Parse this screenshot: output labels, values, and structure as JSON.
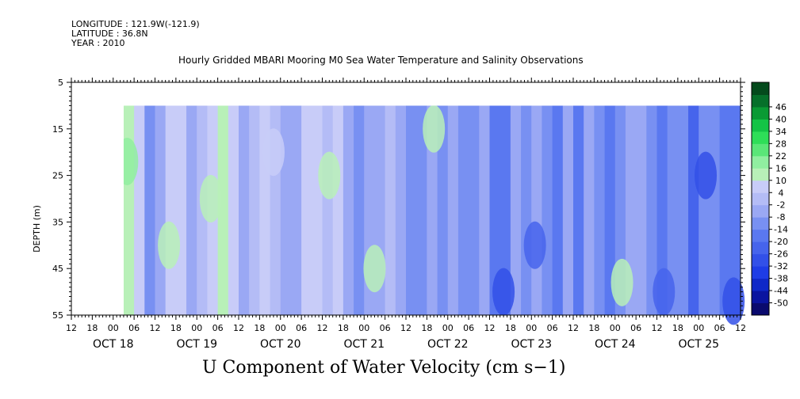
{
  "header": {
    "longitude": "LONGITUDE : 121.9W(-121.9)",
    "latitude": "LATITUDE : 36.8N",
    "year": "YEAR : 2010"
  },
  "chart_data": {
    "type": "heatmap",
    "title": "Hourly Gridded MBARI Mooring M0 Sea Water Temperature and Salinity Observations",
    "bottom_title": "U Component of Water Velocity (cm s−1)",
    "ylabel": "DEPTH (m)",
    "ylim": [
      55,
      5
    ],
    "y_ticks": [
      "5",
      "15",
      "25",
      "35",
      "45",
      "55"
    ],
    "data_depth_range": [
      10,
      55
    ],
    "time_range_hours": [
      -12,
      180
    ],
    "data_start_hour": 3,
    "hour_ticks": [
      "12",
      "18",
      "00",
      "06",
      "12",
      "18",
      "00",
      "06",
      "12",
      "18",
      "00",
      "06",
      "12",
      "18",
      "00",
      "06",
      "12",
      "18",
      "00",
      "06",
      "12",
      "18",
      "00",
      "06",
      "12",
      "18",
      "00",
      "06",
      "12",
      "18",
      "00",
      "06",
      "12"
    ],
    "date_labels": [
      {
        "label": "OCT 18",
        "hour": 0
      },
      {
        "label": "OCT 19",
        "hour": 24
      },
      {
        "label": "OCT 20",
        "hour": 48
      },
      {
        "label": "OCT 21",
        "hour": 72
      },
      {
        "label": "OCT 22",
        "hour": 96
      },
      {
        "label": "OCT 23",
        "hour": 120
      },
      {
        "label": "OCT 24",
        "hour": 144
      },
      {
        "label": "OCT 25",
        "hour": 168
      }
    ],
    "colorbar": {
      "levels": [
        -50,
        -44,
        -38,
        -32,
        -26,
        -20,
        -14,
        -8,
        -2,
        4,
        10,
        16,
        22,
        28,
        34,
        40,
        46
      ],
      "labels": [
        "-50",
        "-44",
        "-38",
        "-32",
        "-26",
        "-20",
        "-14",
        "-8",
        "-2",
        "4",
        "10",
        "16",
        "22",
        "28",
        "34",
        "40",
        "46"
      ],
      "colors": [
        "#0a0a6e",
        "#0a14a0",
        "#0f28c8",
        "#1e3ce6",
        "#3250e8",
        "#4664ec",
        "#5a78f0",
        "#7890f2",
        "#9aa8f4",
        "#b4bcf6",
        "#c8ccf8",
        "#b8f0b8",
        "#90eea0",
        "#5ae678",
        "#2ede58",
        "#14c446",
        "#0a9a34",
        "#06702a",
        "#044a1c"
      ]
    },
    "bands": [
      {
        "hour": 3,
        "value": 12
      },
      {
        "hour": 6,
        "value": 8
      },
      {
        "hour": 9,
        "value": -10
      },
      {
        "hour": 12,
        "value": -4
      },
      {
        "hour": 15,
        "value": 6
      },
      {
        "hour": 18,
        "value": 4
      },
      {
        "hour": 21,
        "value": -8
      },
      {
        "hour": 24,
        "value": 2
      },
      {
        "hour": 27,
        "value": 8
      },
      {
        "hour": 30,
        "value": 14
      },
      {
        "hour": 33,
        "value": 4
      },
      {
        "hour": 36,
        "value": -6
      },
      {
        "hour": 39,
        "value": 2
      },
      {
        "hour": 42,
        "value": 6
      },
      {
        "hour": 45,
        "value": 2
      },
      {
        "hour": 48,
        "value": -8
      },
      {
        "hour": 51,
        "value": -6
      },
      {
        "hour": 54,
        "value": 4
      },
      {
        "hour": 57,
        "value": 6
      },
      {
        "hour": 60,
        "value": -2
      },
      {
        "hour": 63,
        "value": 8
      },
      {
        "hour": 66,
        "value": -4
      },
      {
        "hour": 69,
        "value": -10
      },
      {
        "hour": 72,
        "value": -6
      },
      {
        "hour": 75,
        "value": -8
      },
      {
        "hour": 78,
        "value": 2
      },
      {
        "hour": 81,
        "value": -4
      },
      {
        "hour": 84,
        "value": -12
      },
      {
        "hour": 87,
        "value": -14
      },
      {
        "hour": 90,
        "value": -8
      },
      {
        "hour": 93,
        "value": -10
      },
      {
        "hour": 96,
        "value": -6
      },
      {
        "hour": 99,
        "value": -12
      },
      {
        "hour": 102,
        "value": -10
      },
      {
        "hour": 105,
        "value": -4
      },
      {
        "hour": 108,
        "value": -16
      },
      {
        "hour": 111,
        "value": -20
      },
      {
        "hour": 114,
        "value": -8
      },
      {
        "hour": 117,
        "value": -12
      },
      {
        "hour": 120,
        "value": -4
      },
      {
        "hour": 123,
        "value": -14
      },
      {
        "hour": 126,
        "value": -18
      },
      {
        "hour": 129,
        "value": -8
      },
      {
        "hour": 132,
        "value": -16
      },
      {
        "hour": 135,
        "value": -6
      },
      {
        "hour": 138,
        "value": -12
      },
      {
        "hour": 141,
        "value": -18
      },
      {
        "hour": 144,
        "value": -10
      },
      {
        "hour": 147,
        "value": -8
      },
      {
        "hour": 150,
        "value": -4
      },
      {
        "hour": 153,
        "value": -14
      },
      {
        "hour": 156,
        "value": -20
      },
      {
        "hour": 159,
        "value": -10
      },
      {
        "hour": 162,
        "value": -12
      },
      {
        "hour": 165,
        "value": -22
      },
      {
        "hour": 168,
        "value": -14
      },
      {
        "hour": 171,
        "value": -10
      },
      {
        "hour": 174,
        "value": -18
      }
    ],
    "patches": [
      {
        "hour": 4,
        "depth": 22,
        "value": 18
      },
      {
        "hour": 28,
        "depth": 30,
        "value": 14
      },
      {
        "hour": 16,
        "depth": 40,
        "value": 10
      },
      {
        "hour": 46,
        "depth": 20,
        "value": 8
      },
      {
        "hour": 62,
        "depth": 25,
        "value": 10
      },
      {
        "hour": 75,
        "depth": 45,
        "value": 12
      },
      {
        "hour": 112,
        "depth": 50,
        "value": -30
      },
      {
        "hour": 158,
        "depth": 50,
        "value": -26
      },
      {
        "hour": 170,
        "depth": 25,
        "value": -30
      },
      {
        "hour": 178,
        "depth": 52,
        "value": -32
      },
      {
        "hour": 121,
        "depth": 40,
        "value": -24
      },
      {
        "hour": 92,
        "depth": 15,
        "value": 10
      },
      {
        "hour": 146,
        "depth": 48,
        "value": 12
      }
    ]
  }
}
